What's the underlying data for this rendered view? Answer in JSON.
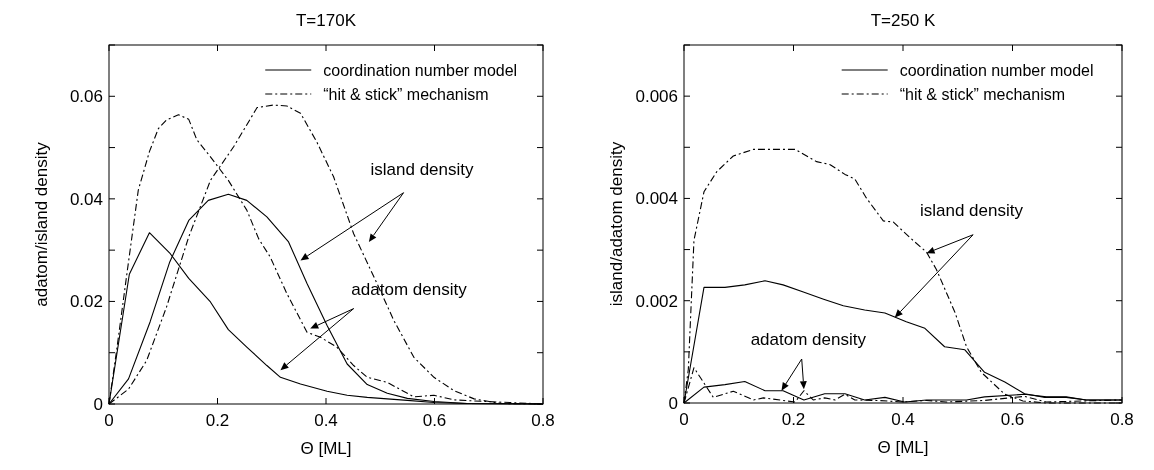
{
  "chart_data": [
    {
      "type": "line",
      "title": "T=170K",
      "xlabel": "Θ [ML]",
      "ylabel": "adatom/island density",
      "xlim": [
        0,
        0.8
      ],
      "xticks": [
        0,
        0.2,
        0.4,
        0.6,
        0.8
      ],
      "ylim": [
        0,
        0.07
      ],
      "yticks": [
        0,
        {
          "value": 0.01,
          "label": null
        },
        0.02,
        {
          "value": 0.03,
          "label": null
        },
        0.04,
        {
          "value": 0.05,
          "label": null
        },
        0.06,
        {
          "value": 0.07,
          "label": null
        }
      ],
      "legend": "top right",
      "grid": false,
      "marker": "none",
      "series": [
        {
          "name": "coordination number model",
          "color": "#000000",
          "line_style": "solid",
          "x": [
            0,
            0.0375,
            0.0745,
            0.113,
            0.147,
            0.187,
            0.22,
            0.254,
            0.291,
            0.316,
            0.353,
            0.402,
            0.439,
            0.476,
            0.55,
            0.599,
            0.66,
            0.8
          ],
          "values": [
            0,
            0.0253,
            0.0334,
            0.0293,
            0.0245,
            0.0199,
            0.0145,
            0.0111,
            0.0075,
            0.0052,
            0.0039,
            0.0025,
            0.0017,
            0.0013,
            0.0007,
            0.0003,
            0.0001,
            0
          ]
        },
        {
          "color": "#000000",
          "line_style": "solid",
          "x": [
            0,
            0.036,
            0.0757,
            0.112,
            0.147,
            0.183,
            0.22,
            0.254,
            0.291,
            0.331,
            0.365,
            0.402,
            0.439,
            0.476,
            0.513,
            0.55,
            0.599,
            0.66,
            0.8
          ],
          "values": [
            0,
            0.0049,
            0.016,
            0.0277,
            0.0358,
            0.0397,
            0.0409,
            0.0397,
            0.0365,
            0.0316,
            0.0235,
            0.0153,
            0.0078,
            0.0038,
            0.0021,
            0.0011,
            0.0005,
            0.0001,
            0
          ]
        },
        {
          "name": "“hit & stick” mechanism",
          "color": "#000000",
          "line_style": "dashed",
          "x": [
            0,
            0.014,
            0.033,
            0.054,
            0.0745,
            0.091,
            0.106,
            0.128,
            0.147,
            0.162,
            0.187,
            0.22,
            0.254,
            0.276,
            0.297,
            0.328,
            0.365,
            0.39,
            0.42,
            0.451,
            0.476,
            0.513,
            0.562,
            0.599,
            0.636,
            0.691,
            0.8
          ],
          "values": [
            0,
            0.0104,
            0.0254,
            0.0417,
            0.0492,
            0.0537,
            0.0554,
            0.0564,
            0.0555,
            0.0515,
            0.0482,
            0.0436,
            0.0378,
            0.0322,
            0.0287,
            0.0215,
            0.014,
            0.013,
            0.0111,
            0.0075,
            0.0052,
            0.0042,
            0.0014,
            0.0017,
            0.0008,
            0.0005,
            0
          ]
        },
        {
          "color": "#000000",
          "line_style": "dashed",
          "x": [
            0,
            0.036,
            0.0695,
            0.106,
            0.147,
            0.187,
            0.23,
            0.273,
            0.303,
            0.328,
            0.353,
            0.383,
            0.414,
            0.451,
            0.494,
            0.525,
            0.562,
            0.599,
            0.636,
            0.673,
            0.722,
            0.8
          ],
          "values": [
            0,
            0.0029,
            0.0085,
            0.0189,
            0.0326,
            0.0436,
            0.0502,
            0.0578,
            0.0583,
            0.0581,
            0.0567,
            0.0511,
            0.0443,
            0.0332,
            0.0235,
            0.0163,
            0.0091,
            0.0052,
            0.0026,
            0.001,
            0.0001,
            0
          ]
        }
      ],
      "annotations": [
        "island density",
        "adatom density"
      ]
    },
    {
      "type": "line",
      "title": "T=250 K",
      "xlabel": "Θ [ML]",
      "ylabel": "island/adatom density",
      "xlim": [
        0,
        0.8
      ],
      "xticks": [
        0,
        0.2,
        0.4,
        0.6,
        0.8
      ],
      "ylim": [
        0,
        0.007
      ],
      "yticks": [
        0,
        {
          "value": 0.001,
          "label": null
        },
        0.002,
        {
          "value": 0.003,
          "label": null
        },
        0.004,
        {
          "value": 0.005,
          "label": null
        },
        0.006,
        {
          "value": 0.007,
          "label": null
        }
      ],
      "legend": "top right",
      "grid": false,
      "marker": "none",
      "series": [
        {
          "name": "coordination number model",
          "color": "#000000",
          "line_style": "solid",
          "x": [
            0,
            0.0365,
            0.0748,
            0.111,
            0.148,
            0.181,
            0.218,
            0.255,
            0.291,
            0.33,
            0.367,
            0.406,
            0.44,
            0.476,
            0.513,
            0.549,
            0.586,
            0.622,
            0.659,
            0.698,
            0.735,
            0.8
          ],
          "values": [
            0,
            0.00226,
            0.00226,
            0.00231,
            0.00239,
            0.00231,
            0.00217,
            0.00203,
            0.0019,
            0.00182,
            0.00176,
            0.00159,
            0.00146,
            0.0011,
            0.00104,
            0.0006,
            0.00041,
            0.00018,
            0.00011,
            0.00011,
            6e-05,
            6e-05
          ]
        },
        {
          "color": "#000000",
          "line_style": "solid",
          "x": [
            0,
            0.0365,
            0.0748,
            0.111,
            0.148,
            0.181,
            0.219,
            0.257,
            0.294,
            0.33,
            0.367,
            0.403,
            0.443,
            0.516,
            0.549,
            0.622,
            0.662,
            0.698,
            0.735,
            0.8
          ],
          "values": [
            0,
            0.00031,
            0.00036,
            0.00042,
            0.00024,
            0.00024,
            6e-05,
            0.00018,
            0.00018,
            6e-05,
            0.00011,
            2e-05,
            6e-05,
            6e-05,
            0.00012,
            0.00017,
            0.00012,
            0.00012,
            6e-05,
            6e-05
          ]
        },
        {
          "name": "“hit & stick” mechanism",
          "color": "#000000",
          "line_style": "dashed",
          "x": [
            0,
            0.0079,
            0.0182,
            0.0365,
            0.0596,
            0.09,
            0.127,
            0.163,
            0.203,
            0.242,
            0.267,
            0.294,
            0.312,
            0.333,
            0.364,
            0.382,
            0.413,
            0.443,
            0.461,
            0.495,
            0.516,
            0.543,
            0.586,
            0.619,
            0.662,
            0.8
          ],
          "values": [
            0,
            0.00066,
            0.00318,
            0.00413,
            0.00452,
            0.00483,
            0.00496,
            0.00496,
            0.00496,
            0.00472,
            0.00466,
            0.00447,
            0.00438,
            0.00401,
            0.00356,
            0.00354,
            0.00323,
            0.00295,
            0.00261,
            0.00177,
            0.0011,
            0.0006,
            0.00017,
            4e-05,
            0,
            0
          ]
        },
        {
          "color": "#000000",
          "line_style": "dashed",
          "x": [
            0,
            0.0182,
            0.0535,
            0.09,
            0.127,
            0.145,
            0.181,
            0.203,
            0.219,
            0.236,
            0.257,
            0.276,
            0.294,
            0.312,
            0.352,
            0.4,
            0.443,
            0.479,
            0.549,
            0.622,
            0.662,
            0.8
          ],
          "values": [
            0,
            0.00069,
            0.00011,
            0.00023,
            6e-05,
            0.0001,
            5e-05,
            2e-05,
            0.00024,
            6e-05,
            0.0001,
            6e-05,
            0.00017,
            6e-05,
            5e-05,
            2e-05,
            5e-05,
            2e-05,
            5e-05,
            0.00013,
            2e-05,
            6e-05
          ]
        }
      ],
      "annotations": [
        "island density",
        "adatom density"
      ]
    }
  ]
}
